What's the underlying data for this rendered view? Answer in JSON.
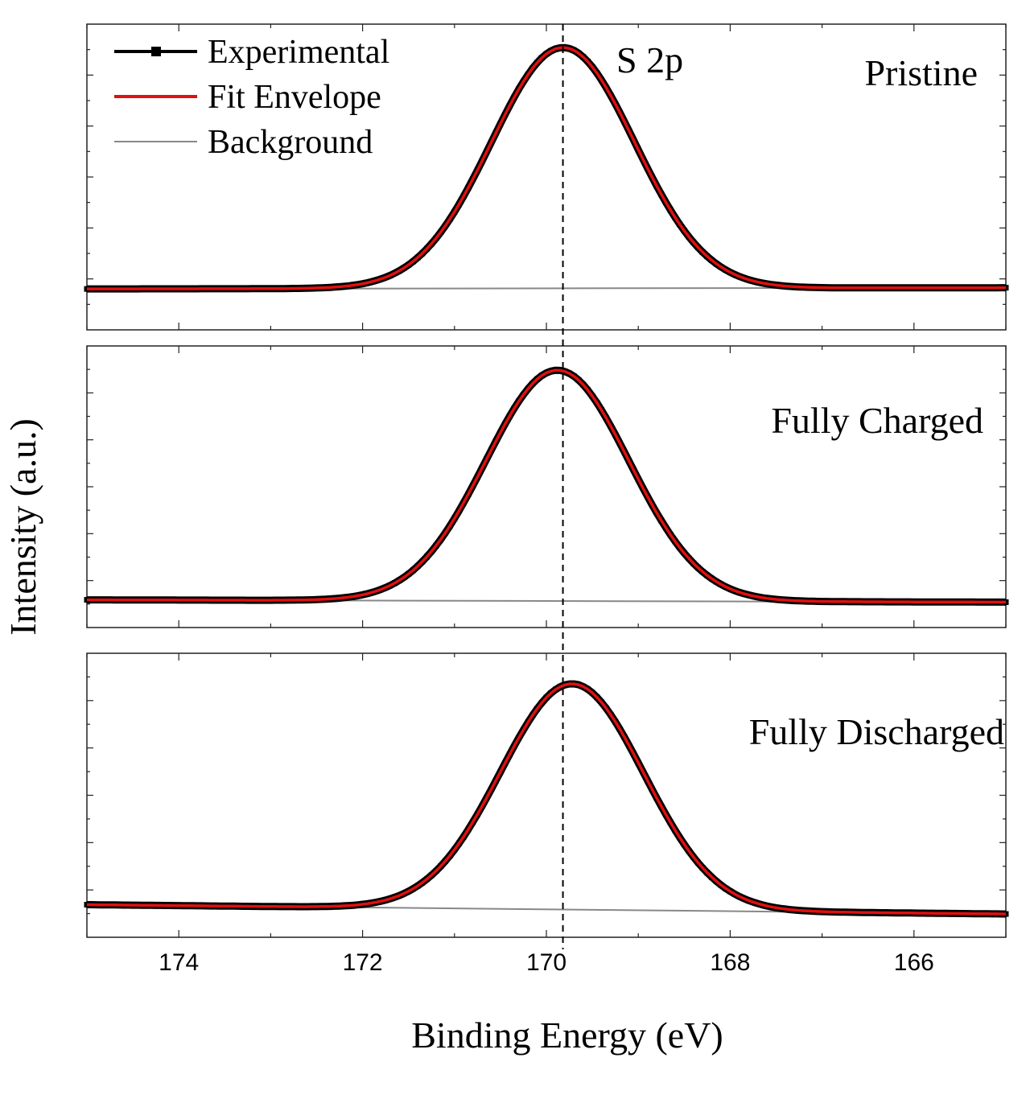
{
  "chart_data": [
    {
      "type": "line",
      "panel_label": "Pristine",
      "annotation": "S 2p",
      "x_range": [
        175,
        165
      ],
      "y_range": [
        -0.17,
        1.1
      ],
      "peak": {
        "center": 169.82,
        "height": 1.0,
        "sigma": 0.78
      },
      "background": {
        "start": 0.0,
        "end": 0.005
      },
      "series": [
        {
          "name": "Experimental",
          "color": "#000000",
          "style": "line-with-square-markers"
        },
        {
          "name": "Fit Envelope",
          "color": "#e01010",
          "style": "line"
        },
        {
          "name": "Background",
          "color": "#888888",
          "style": "line"
        }
      ]
    },
    {
      "type": "line",
      "panel_label": "Fully Charged",
      "x_range": [
        175,
        165
      ],
      "y_range": [
        -0.12,
        1.1
      ],
      "peak": {
        "center": 169.88,
        "height": 1.0,
        "sigma": 0.78
      },
      "background": {
        "start": 0.0,
        "end": -0.01
      }
    },
    {
      "type": "line",
      "panel_label": "Fully Discharged",
      "x_range": [
        175,
        165
      ],
      "y_range": [
        -0.14,
        1.08
      ],
      "peak": {
        "center": 169.72,
        "height": 0.97,
        "sigma": 0.78
      },
      "background": {
        "start": 0.0,
        "end": -0.04
      }
    }
  ],
  "x_axis": {
    "label": "Binding Energy (eV)",
    "ticks": [
      174,
      172,
      170,
      168,
      166
    ],
    "tick_labels": [
      "174",
      "172",
      "170",
      "168",
      "166"
    ]
  },
  "y_axis": {
    "label": "Intensity (a.u.)"
  },
  "reference_line": {
    "x": 169.82,
    "style": "dashed"
  },
  "legend": {
    "position": "top-left",
    "items": [
      "Experimental",
      "Fit Envelope",
      "Background"
    ]
  }
}
